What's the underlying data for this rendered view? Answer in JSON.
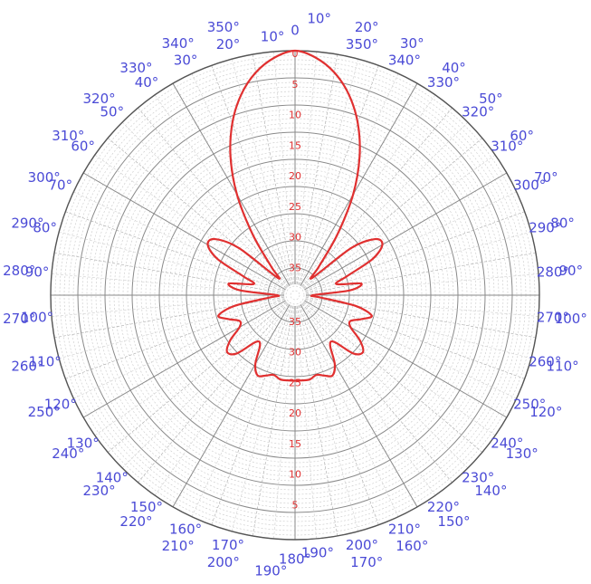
{
  "chart_data": {
    "type": "polar",
    "title": "",
    "radial_axis": {
      "unit": "dB",
      "direction": "inverted",
      "range": [
        0,
        40
      ],
      "tick_labels": [
        "0",
        "5",
        "10",
        "15",
        "20",
        "25",
        "30",
        "35"
      ]
    },
    "angular_axis": {
      "degrees": [
        0,
        10,
        20,
        30,
        40,
        50,
        60,
        70,
        80,
        90,
        100,
        110,
        120,
        130,
        140,
        150,
        160,
        170,
        180,
        190,
        200,
        210,
        220,
        230,
        240,
        250,
        260,
        270,
        280,
        290,
        300,
        310,
        320,
        330,
        340,
        350
      ],
      "outer_labels": [
        "0",
        "10°",
        "20°",
        "30°",
        "40°",
        "50°",
        "60°",
        "70°",
        "80°",
        "90°",
        "100°",
        "110°",
        "120°",
        "130°",
        "140°",
        "150°",
        "160°",
        "170°",
        "180°",
        "190°",
        "200°",
        "210°",
        "220°",
        "230°",
        "240°",
        "250°",
        "260°",
        "270°",
        "280°",
        "290°",
        "300°",
        "310°",
        "320°",
        "330°",
        "340°",
        "350°"
      ],
      "inner_labels": [
        "",
        "350°",
        "340°",
        "330°",
        "320°",
        "310°",
        "300°",
        "290°",
        "280°",
        "270°",
        "260°",
        "250°",
        "240°",
        "230°",
        "220°",
        "210°",
        "200°",
        "190°",
        "",
        "170°",
        "160°",
        "150°",
        "140°",
        "130°",
        "120°",
        "110°",
        "100°",
        "90°",
        "80°",
        "70°",
        "60°",
        "50°",
        "40°",
        "30°",
        "20°",
        "10°"
      ]
    },
    "grid": true,
    "series": [
      {
        "color": "#e03030",
        "angles_deg": [
          0,
          5,
          10,
          15,
          20,
          25,
          30,
          35,
          40,
          45,
          50,
          55,
          60,
          65,
          70,
          75,
          80,
          85,
          90,
          95,
          100,
          105,
          110,
          115,
          120,
          125,
          130,
          135,
          140,
          145,
          150,
          155,
          160,
          165,
          170,
          175,
          180,
          185,
          190,
          195,
          200,
          205,
          210,
          215,
          220,
          225,
          230,
          235,
          240,
          245,
          250,
          255,
          260,
          265,
          270,
          275,
          280,
          285,
          290,
          295,
          300,
          305,
          310,
          315,
          320,
          325,
          330,
          335,
          340,
          345,
          350,
          355
        ],
        "attenuation_db": [
          0,
          1,
          3,
          6,
          10,
          15,
          21,
          28,
          34,
          36,
          28,
          24,
          23.5,
          26,
          31,
          33,
          29,
          31,
          37,
          36,
          30,
          27,
          28.5,
          30,
          29.5,
          27,
          25.5,
          26.5,
          30,
          30,
          27,
          25.5,
          26,
          26.5,
          26,
          26,
          26,
          26,
          26,
          26.5,
          26,
          25.5,
          27,
          30,
          30,
          26.5,
          25.5,
          27,
          29.5,
          30,
          28.5,
          27,
          30,
          36,
          37,
          31,
          29,
          33,
          31,
          26,
          23.5,
          24,
          28,
          36,
          34,
          28,
          21,
          15,
          10,
          6,
          3,
          1
        ]
      }
    ]
  }
}
